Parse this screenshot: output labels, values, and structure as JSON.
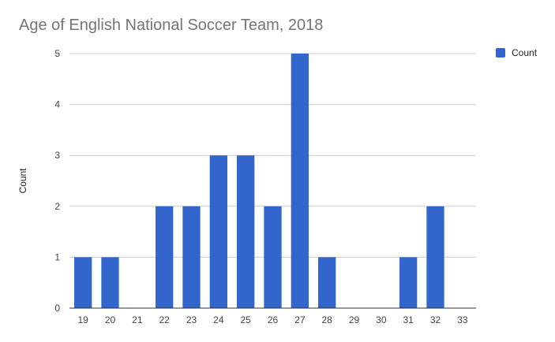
{
  "chart_data": {
    "type": "bar",
    "title": "Age of English National Soccer Team, 2018",
    "xlabel": "",
    "ylabel": "Count",
    "categories": [
      "19",
      "20",
      "21",
      "22",
      "23",
      "24",
      "25",
      "26",
      "27",
      "28",
      "29",
      "30",
      "31",
      "32",
      "33"
    ],
    "series": [
      {
        "name": "Count",
        "values": [
          1,
          1,
          0,
          2,
          2,
          3,
          3,
          2,
          5,
          1,
          0,
          0,
          1,
          2,
          0
        ]
      }
    ],
    "ylim": [
      0,
      5
    ],
    "yticks": [
      "0",
      "1",
      "2",
      "3",
      "4",
      "5"
    ],
    "grid": true,
    "legend_position": "right",
    "bar_color": "#3366cc",
    "grid_color": "#cccccc",
    "axis_color": "#333333"
  }
}
